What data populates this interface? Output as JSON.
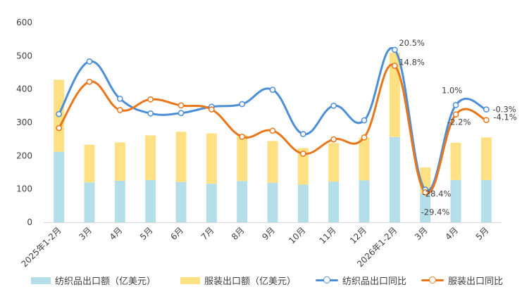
{
  "chart_data": {
    "type": "bar+line",
    "categories": [
      "2025年1-2月",
      "3月",
      "4月",
      "5月",
      "6月",
      "7月",
      "8月",
      "9月",
      "10月",
      "11月",
      "12月",
      "2026年1-2月",
      "3月",
      "4月",
      "5月"
    ],
    "ylim": [
      0,
      600
    ],
    "yticks": [
      "0",
      "100",
      "200",
      "300",
      "400",
      "500",
      "600"
    ],
    "stacked_bars": [
      {
        "name": "纺织品出口额（亿美元）",
        "color": "#b4dfe8",
        "values": [
          212,
          120,
          125,
          127,
          121,
          116,
          124,
          119,
          113,
          122,
          126,
          256,
          88,
          127,
          127
        ]
      },
      {
        "name": "服装出口额（亿美元）",
        "color": "#ffe083",
        "values": [
          216,
          113,
          115,
          134,
          151,
          151,
          139,
          125,
          110,
          116,
          128,
          253,
          77,
          112,
          128
        ]
      }
    ],
    "lines": [
      {
        "name": "纺织品出口同比",
        "color": "#4d8fd6",
        "values": [
          325,
          483,
          371,
          327,
          328,
          347,
          355,
          398,
          265,
          350,
          306,
          518,
          98,
          352,
          339
        ]
      },
      {
        "name": "服装出口同比",
        "color": "#e8761d",
        "values": [
          283,
          422,
          337,
          369,
          351,
          339,
          257,
          275,
          206,
          249,
          255,
          470,
          90,
          324,
          307
        ]
      }
    ],
    "annotations": [
      {
        "text": "20.5%",
        "series": 0,
        "index": 11
      },
      {
        "text": "14.8%",
        "series": 1,
        "index": 11
      },
      {
        "text": "-28.4%",
        "series": 0,
        "index": 12
      },
      {
        "text": "-29.4%",
        "series": 1,
        "index": 12
      },
      {
        "text": "1.0%",
        "series": 0,
        "index": 13
      },
      {
        "text": "-2.2%",
        "series": 1,
        "index": 13
      },
      {
        "text": "-0.3%",
        "series": 0,
        "index": 14
      },
      {
        "text": "-4.1%",
        "series": 1,
        "index": 14
      }
    ],
    "grid": false,
    "legend_position": "bottom"
  },
  "legend": {
    "items": [
      "纺织品出口额（亿美元）",
      "服装出口额（亿美元）",
      "纺织品出口同比",
      "服装出口同比"
    ]
  }
}
